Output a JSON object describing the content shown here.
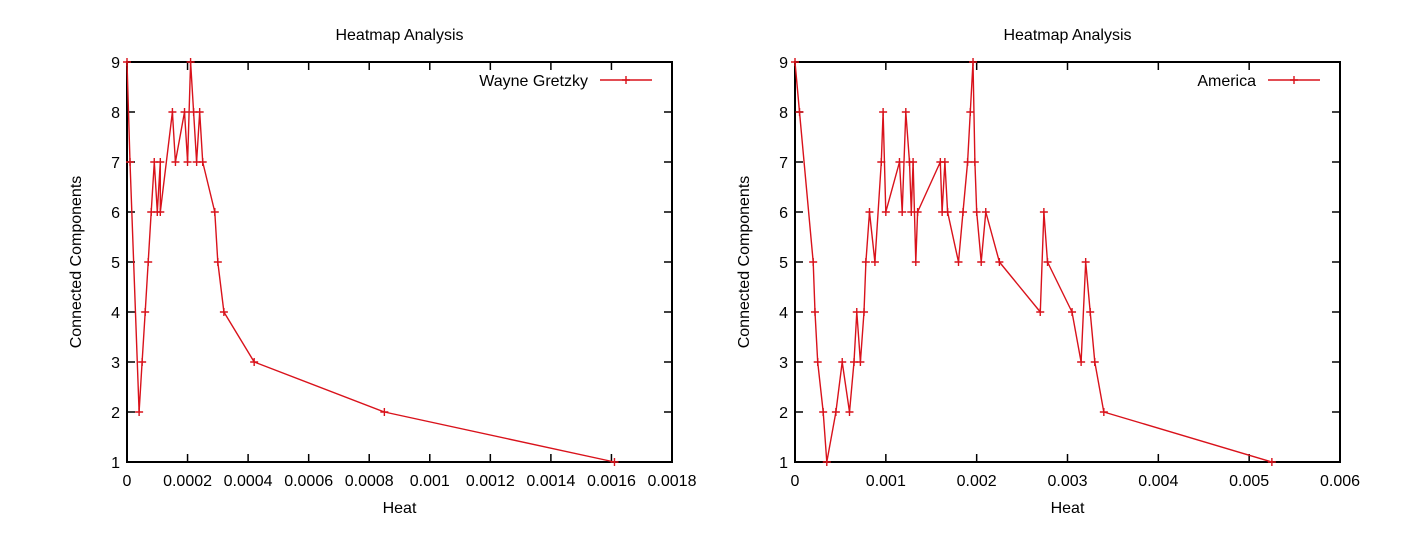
{
  "colors": {
    "series": "#d9121b",
    "axis": "#000000",
    "background": "#ffffff"
  },
  "chart_data": [
    {
      "type": "line",
      "title": "Heatmap Analysis",
      "xlabel": "Heat",
      "ylabel": "Connected Components",
      "xlim": [
        0,
        0.0018
      ],
      "ylim": [
        1,
        9
      ],
      "xticks": [
        0,
        0.0002,
        0.0004,
        0.0006,
        0.0008,
        0.001,
        0.0012,
        0.0014,
        0.0016,
        0.0018
      ],
      "xtick_labels": [
        "0",
        "0.0002",
        "0.0004",
        "0.0006",
        "0.0008",
        "0.001",
        "0.0012",
        "0.0014",
        "0.0016",
        "0.0018"
      ],
      "yticks": [
        1,
        2,
        3,
        4,
        5,
        6,
        7,
        8,
        9
      ],
      "ytick_labels": [
        "1",
        "2",
        "3",
        "4",
        "5",
        "6",
        "7",
        "8",
        "9"
      ],
      "grid": false,
      "legend_position": "top-right",
      "series": [
        {
          "name": "Wayne Gretzky",
          "marker": "plus",
          "points": [
            [
              0.0,
              9
            ],
            [
              1e-05,
              7
            ],
            [
              4e-05,
              2
            ],
            [
              5e-05,
              3
            ],
            [
              6e-05,
              4
            ],
            [
              7e-05,
              5
            ],
            [
              8e-05,
              6
            ],
            [
              9e-05,
              7
            ],
            [
              0.0001,
              6
            ],
            [
              0.00011,
              7
            ],
            [
              0.00011,
              6
            ],
            [
              0.00015,
              8
            ],
            [
              0.00016,
              7
            ],
            [
              0.00019,
              8
            ],
            [
              0.0002,
              7
            ],
            [
              0.00021,
              9
            ],
            [
              0.00022,
              8
            ],
            [
              0.00023,
              7
            ],
            [
              0.00024,
              8
            ],
            [
              0.00025,
              7
            ],
            [
              0.00029,
              6
            ],
            [
              0.0003,
              5
            ],
            [
              0.00032,
              4
            ],
            [
              0.00042,
              3
            ],
            [
              0.00085,
              2
            ],
            [
              0.00161,
              1
            ]
          ]
        }
      ]
    },
    {
      "type": "line",
      "title": "Heatmap Analysis",
      "xlabel": "Heat",
      "ylabel": "Connected Components",
      "xlim": [
        0,
        0.006
      ],
      "ylim": [
        1,
        9
      ],
      "xticks": [
        0,
        0.001,
        0.002,
        0.003,
        0.004,
        0.005,
        0.006
      ],
      "xtick_labels": [
        "0",
        "0.001",
        "0.002",
        "0.003",
        "0.004",
        "0.005",
        "0.006"
      ],
      "yticks": [
        1,
        2,
        3,
        4,
        5,
        6,
        7,
        8,
        9
      ],
      "ytick_labels": [
        "1",
        "2",
        "3",
        "4",
        "5",
        "6",
        "7",
        "8",
        "9"
      ],
      "grid": false,
      "legend_position": "top-right",
      "series": [
        {
          "name": "America",
          "marker": "plus",
          "points": [
            [
              0.0,
              9
            ],
            [
              5e-05,
              8
            ],
            [
              0.0002,
              5
            ],
            [
              0.00022,
              4
            ],
            [
              0.00025,
              3
            ],
            [
              0.00031,
              2
            ],
            [
              0.00035,
              1
            ],
            [
              0.00045,
              2
            ],
            [
              0.00052,
              3
            ],
            [
              0.0006,
              2
            ],
            [
              0.00065,
              3
            ],
            [
              0.00068,
              4
            ],
            [
              0.00072,
              3
            ],
            [
              0.00076,
              4
            ],
            [
              0.00078,
              5
            ],
            [
              0.00082,
              6
            ],
            [
              0.00088,
              5
            ],
            [
              0.00095,
              7
            ],
            [
              0.00097,
              8
            ],
            [
              0.001,
              6
            ],
            [
              0.00115,
              7
            ],
            [
              0.00118,
              6
            ],
            [
              0.00122,
              8
            ],
            [
              0.00126,
              7
            ],
            [
              0.00128,
              6
            ],
            [
              0.0013,
              7
            ],
            [
              0.00133,
              5
            ],
            [
              0.00135,
              6
            ],
            [
              0.0016,
              7
            ],
            [
              0.00162,
              6
            ],
            [
              0.00165,
              7
            ],
            [
              0.00168,
              6
            ],
            [
              0.0018,
              5
            ],
            [
              0.00185,
              6
            ],
            [
              0.0019,
              7
            ],
            [
              0.00193,
              8
            ],
            [
              0.00196,
              9
            ],
            [
              0.00198,
              7
            ],
            [
              0.002,
              6
            ],
            [
              0.00205,
              5
            ],
            [
              0.0021,
              6
            ],
            [
              0.00225,
              5
            ],
            [
              0.0027,
              4
            ],
            [
              0.00274,
              6
            ],
            [
              0.00278,
              5
            ],
            [
              0.00305,
              4
            ],
            [
              0.00315,
              3
            ],
            [
              0.0032,
              5
            ],
            [
              0.00325,
              4
            ],
            [
              0.0033,
              3
            ],
            [
              0.0034,
              2
            ],
            [
              0.00525,
              1
            ]
          ]
        }
      ]
    }
  ]
}
